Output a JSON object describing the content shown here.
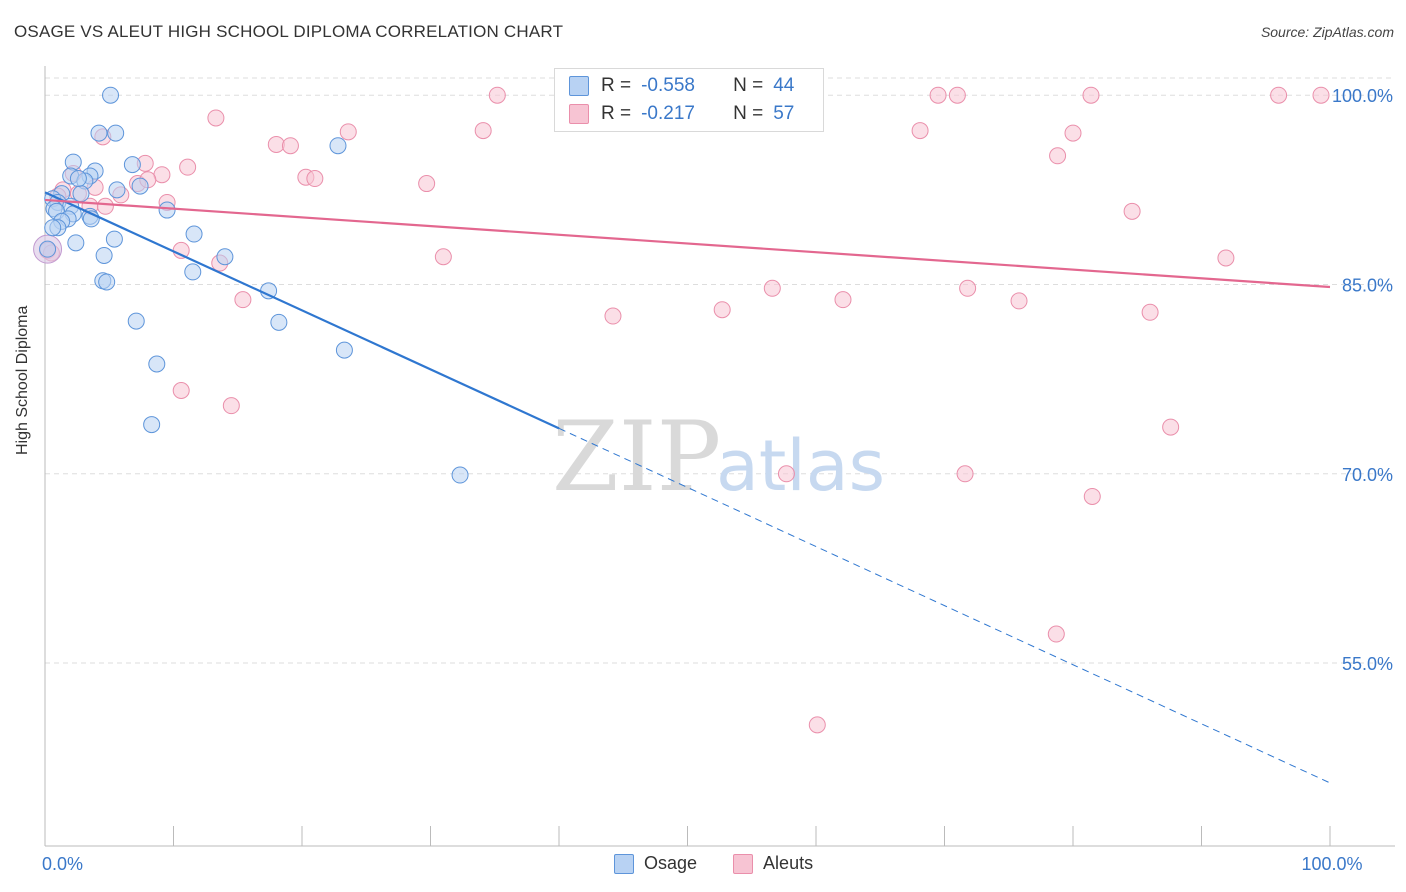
{
  "header": {
    "title": "OSAGE VS ALEUT HIGH SCHOOL DIPLOMA CORRELATION CHART",
    "source": "Source: ZipAtlas.com"
  },
  "watermark": {
    "zip": "ZIP",
    "atlas": "atlas"
  },
  "stats_legend": {
    "r_label": "R =",
    "n_label": "N =",
    "osage": {
      "r": "-0.558",
      "n": "44"
    },
    "aleuts": {
      "r": "-0.217",
      "n": "57"
    }
  },
  "colors": {
    "osage_fill": "#b8d2f3",
    "osage_stroke": "#5e95da",
    "osage_line": "#2f77d0",
    "aleuts_fill": "#f7c4d3",
    "aleuts_stroke": "#ea8fab",
    "aleuts_line": "#e3678f",
    "tick_label": "#3a78c9",
    "grid": "#dddddd"
  },
  "chart_data": {
    "type": "scatter",
    "title": "OSAGE VS ALEUT HIGH SCHOOL DIPLOMA CORRELATION CHART",
    "xlabel": "",
    "ylabel": "High School Diploma",
    "xlim": [
      0,
      100
    ],
    "ylim": [
      40.5,
      102
    ],
    "x_tick_labels": [
      {
        "value": 0,
        "label": "0.0%"
      },
      {
        "value": 100,
        "label": "100.0%"
      }
    ],
    "y_tick_labels": [
      {
        "value": 100,
        "label": "100.0%"
      },
      {
        "value": 85,
        "label": "85.0%"
      },
      {
        "value": 70,
        "label": "70.0%"
      },
      {
        "value": 55,
        "label": "55.0%"
      }
    ],
    "grid": true,
    "legend": "bottom-center",
    "series": [
      {
        "name": "Osage",
        "points": [
          [
            5.1,
            100
          ],
          [
            5.5,
            97
          ],
          [
            4.2,
            97
          ],
          [
            22.8,
            96
          ],
          [
            2.2,
            94.7
          ],
          [
            6.8,
            94.5
          ],
          [
            3.9,
            94
          ],
          [
            2.0,
            93.6
          ],
          [
            3.5,
            93.6
          ],
          [
            3.1,
            93.2
          ],
          [
            7.4,
            92.8
          ],
          [
            5.6,
            92.5
          ],
          [
            2.8,
            92.2
          ],
          [
            1.3,
            92.2
          ],
          [
            0.6,
            91.8
          ],
          [
            1.0,
            91.5
          ],
          [
            2.0,
            91.2
          ],
          [
            0.7,
            91.0
          ],
          [
            9.5,
            90.9
          ],
          [
            0.9,
            90.8
          ],
          [
            2.2,
            90.6
          ],
          [
            1.8,
            90.2
          ],
          [
            3.5,
            90.4
          ],
          [
            3.6,
            90.2
          ],
          [
            1.3,
            90.0
          ],
          [
            1.0,
            89.5
          ],
          [
            0.6,
            89.5
          ],
          [
            11.6,
            89.0
          ],
          [
            5.4,
            88.6
          ],
          [
            2.4,
            88.3
          ],
          [
            0.2,
            87.8
          ],
          [
            4.6,
            87.3
          ],
          [
            14.0,
            87.2
          ],
          [
            11.5,
            86.0
          ],
          [
            4.5,
            85.3
          ],
          [
            4.8,
            85.2
          ],
          [
            17.4,
            84.5
          ],
          [
            7.1,
            82.1
          ],
          [
            18.2,
            82.0
          ],
          [
            23.3,
            79.8
          ],
          [
            8.7,
            78.7
          ],
          [
            8.3,
            73.9
          ],
          [
            32.3,
            69.9
          ],
          [
            2.6,
            93.4
          ]
        ],
        "trend_solid": [
          [
            0,
            92.3
          ],
          [
            40,
            73.6
          ]
        ],
        "trend_dashed": [
          [
            40,
            73.6
          ],
          [
            100,
            45.5
          ]
        ]
      },
      {
        "name": "Aleuts",
        "points": [
          [
            35.2,
            100
          ],
          [
            47.1,
            100
          ],
          [
            56.0,
            100
          ],
          [
            69.5,
            100
          ],
          [
            71.0,
            100
          ],
          [
            81.4,
            100
          ],
          [
            96.0,
            100
          ],
          [
            99.3,
            100
          ],
          [
            13.3,
            98.2
          ],
          [
            23.6,
            97.1
          ],
          [
            34.1,
            97.2
          ],
          [
            68.1,
            97.2
          ],
          [
            80.0,
            97.0
          ],
          [
            4.5,
            96.7
          ],
          [
            18.0,
            96.1
          ],
          [
            19.1,
            96.0
          ],
          [
            78.8,
            95.2
          ],
          [
            7.8,
            94.6
          ],
          [
            11.1,
            94.3
          ],
          [
            2.2,
            93.8
          ],
          [
            9.1,
            93.7
          ],
          [
            20.3,
            93.5
          ],
          [
            21.0,
            93.4
          ],
          [
            7.2,
            93.0
          ],
          [
            29.7,
            93.0
          ],
          [
            3.9,
            92.7
          ],
          [
            1.4,
            92.5
          ],
          [
            2.6,
            92.2
          ],
          [
            5.9,
            92.1
          ],
          [
            9.5,
            91.5
          ],
          [
            3.5,
            91.2
          ],
          [
            4.7,
            91.2
          ],
          [
            84.6,
            90.8
          ],
          [
            10.6,
            87.7
          ],
          [
            0.2,
            87.7
          ],
          [
            31.0,
            87.2
          ],
          [
            91.9,
            87.1
          ],
          [
            13.6,
            86.7
          ],
          [
            56.6,
            84.7
          ],
          [
            71.8,
            84.7
          ],
          [
            15.4,
            83.8
          ],
          [
            62.1,
            83.8
          ],
          [
            75.8,
            83.7
          ],
          [
            52.7,
            83.0
          ],
          [
            86.0,
            82.8
          ],
          [
            44.2,
            82.5
          ],
          [
            10.6,
            76.6
          ],
          [
            14.5,
            75.4
          ],
          [
            87.6,
            73.7
          ],
          [
            57.7,
            70.0
          ],
          [
            71.6,
            70.0
          ],
          [
            81.5,
            68.2
          ],
          [
            78.7,
            57.3
          ],
          [
            60.1,
            50.1
          ],
          [
            1.0,
            92.0
          ],
          [
            0.5,
            87.5
          ],
          [
            8.0,
            93.3
          ]
        ],
        "trend_solid": [
          [
            0,
            91.7
          ],
          [
            100,
            84.8
          ]
        ]
      }
    ]
  }
}
